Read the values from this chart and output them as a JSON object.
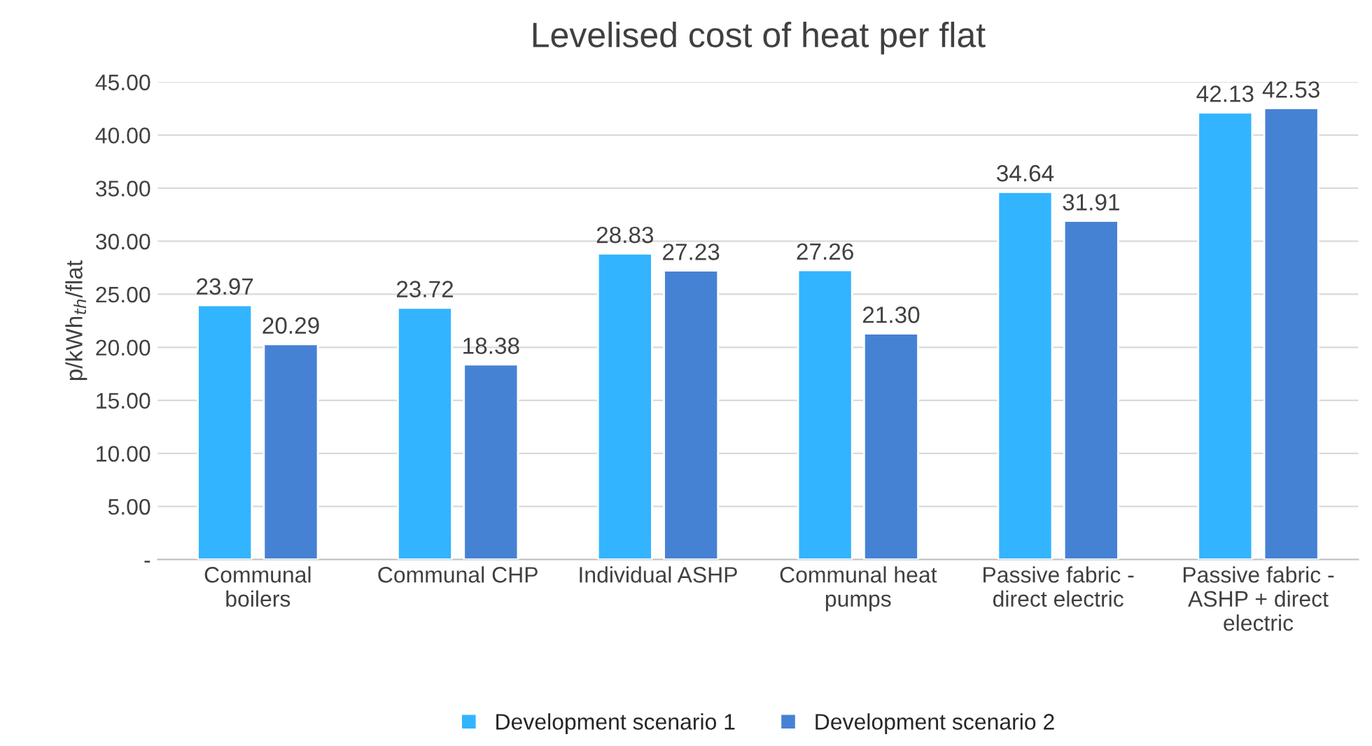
{
  "chart_data": {
    "type": "bar",
    "title": "Levelised cost of heat per flat",
    "ylabel": "p/kWh$_{th}$/flat",
    "categories": [
      "Communal\nboilers",
      "Communal CHP",
      "Individual ASHP",
      "Communal heat\npumps",
      "Passive fabric -\ndirect electric",
      "Passive fabric -\nASHP + direct\nelectric"
    ],
    "series": [
      {
        "name": "Development scenario 1",
        "color": "#33b4ff",
        "values": [
          23.97,
          23.72,
          28.83,
          27.26,
          34.64,
          42.13
        ],
        "value_labels": [
          "23.97",
          "23.72",
          "28.83",
          "27.26",
          "34.64",
          "42.13"
        ]
      },
      {
        "name": "Development scenario 2",
        "color": "#4682d4",
        "values": [
          20.29,
          18.38,
          27.23,
          21.3,
          31.91,
          42.53
        ],
        "value_labels": [
          "20.29",
          "18.38",
          "27.23",
          "21.30",
          "31.91",
          "42.53"
        ]
      }
    ],
    "ylim": [
      0,
      45
    ],
    "yticks": [
      {
        "value": 0,
        "label": "-"
      },
      {
        "value": 5,
        "label": "5.00"
      },
      {
        "value": 10,
        "label": "10.00"
      },
      {
        "value": 15,
        "label": "15.00"
      },
      {
        "value": 20,
        "label": "20.00"
      },
      {
        "value": 25,
        "label": "25.00"
      },
      {
        "value": 30,
        "label": "30.00"
      },
      {
        "value": 35,
        "label": "35.00"
      },
      {
        "value": 40,
        "label": "40.00"
      },
      {
        "value": 45,
        "label": "45.00"
      }
    ],
    "grid": "y",
    "legend": "bottom"
  }
}
